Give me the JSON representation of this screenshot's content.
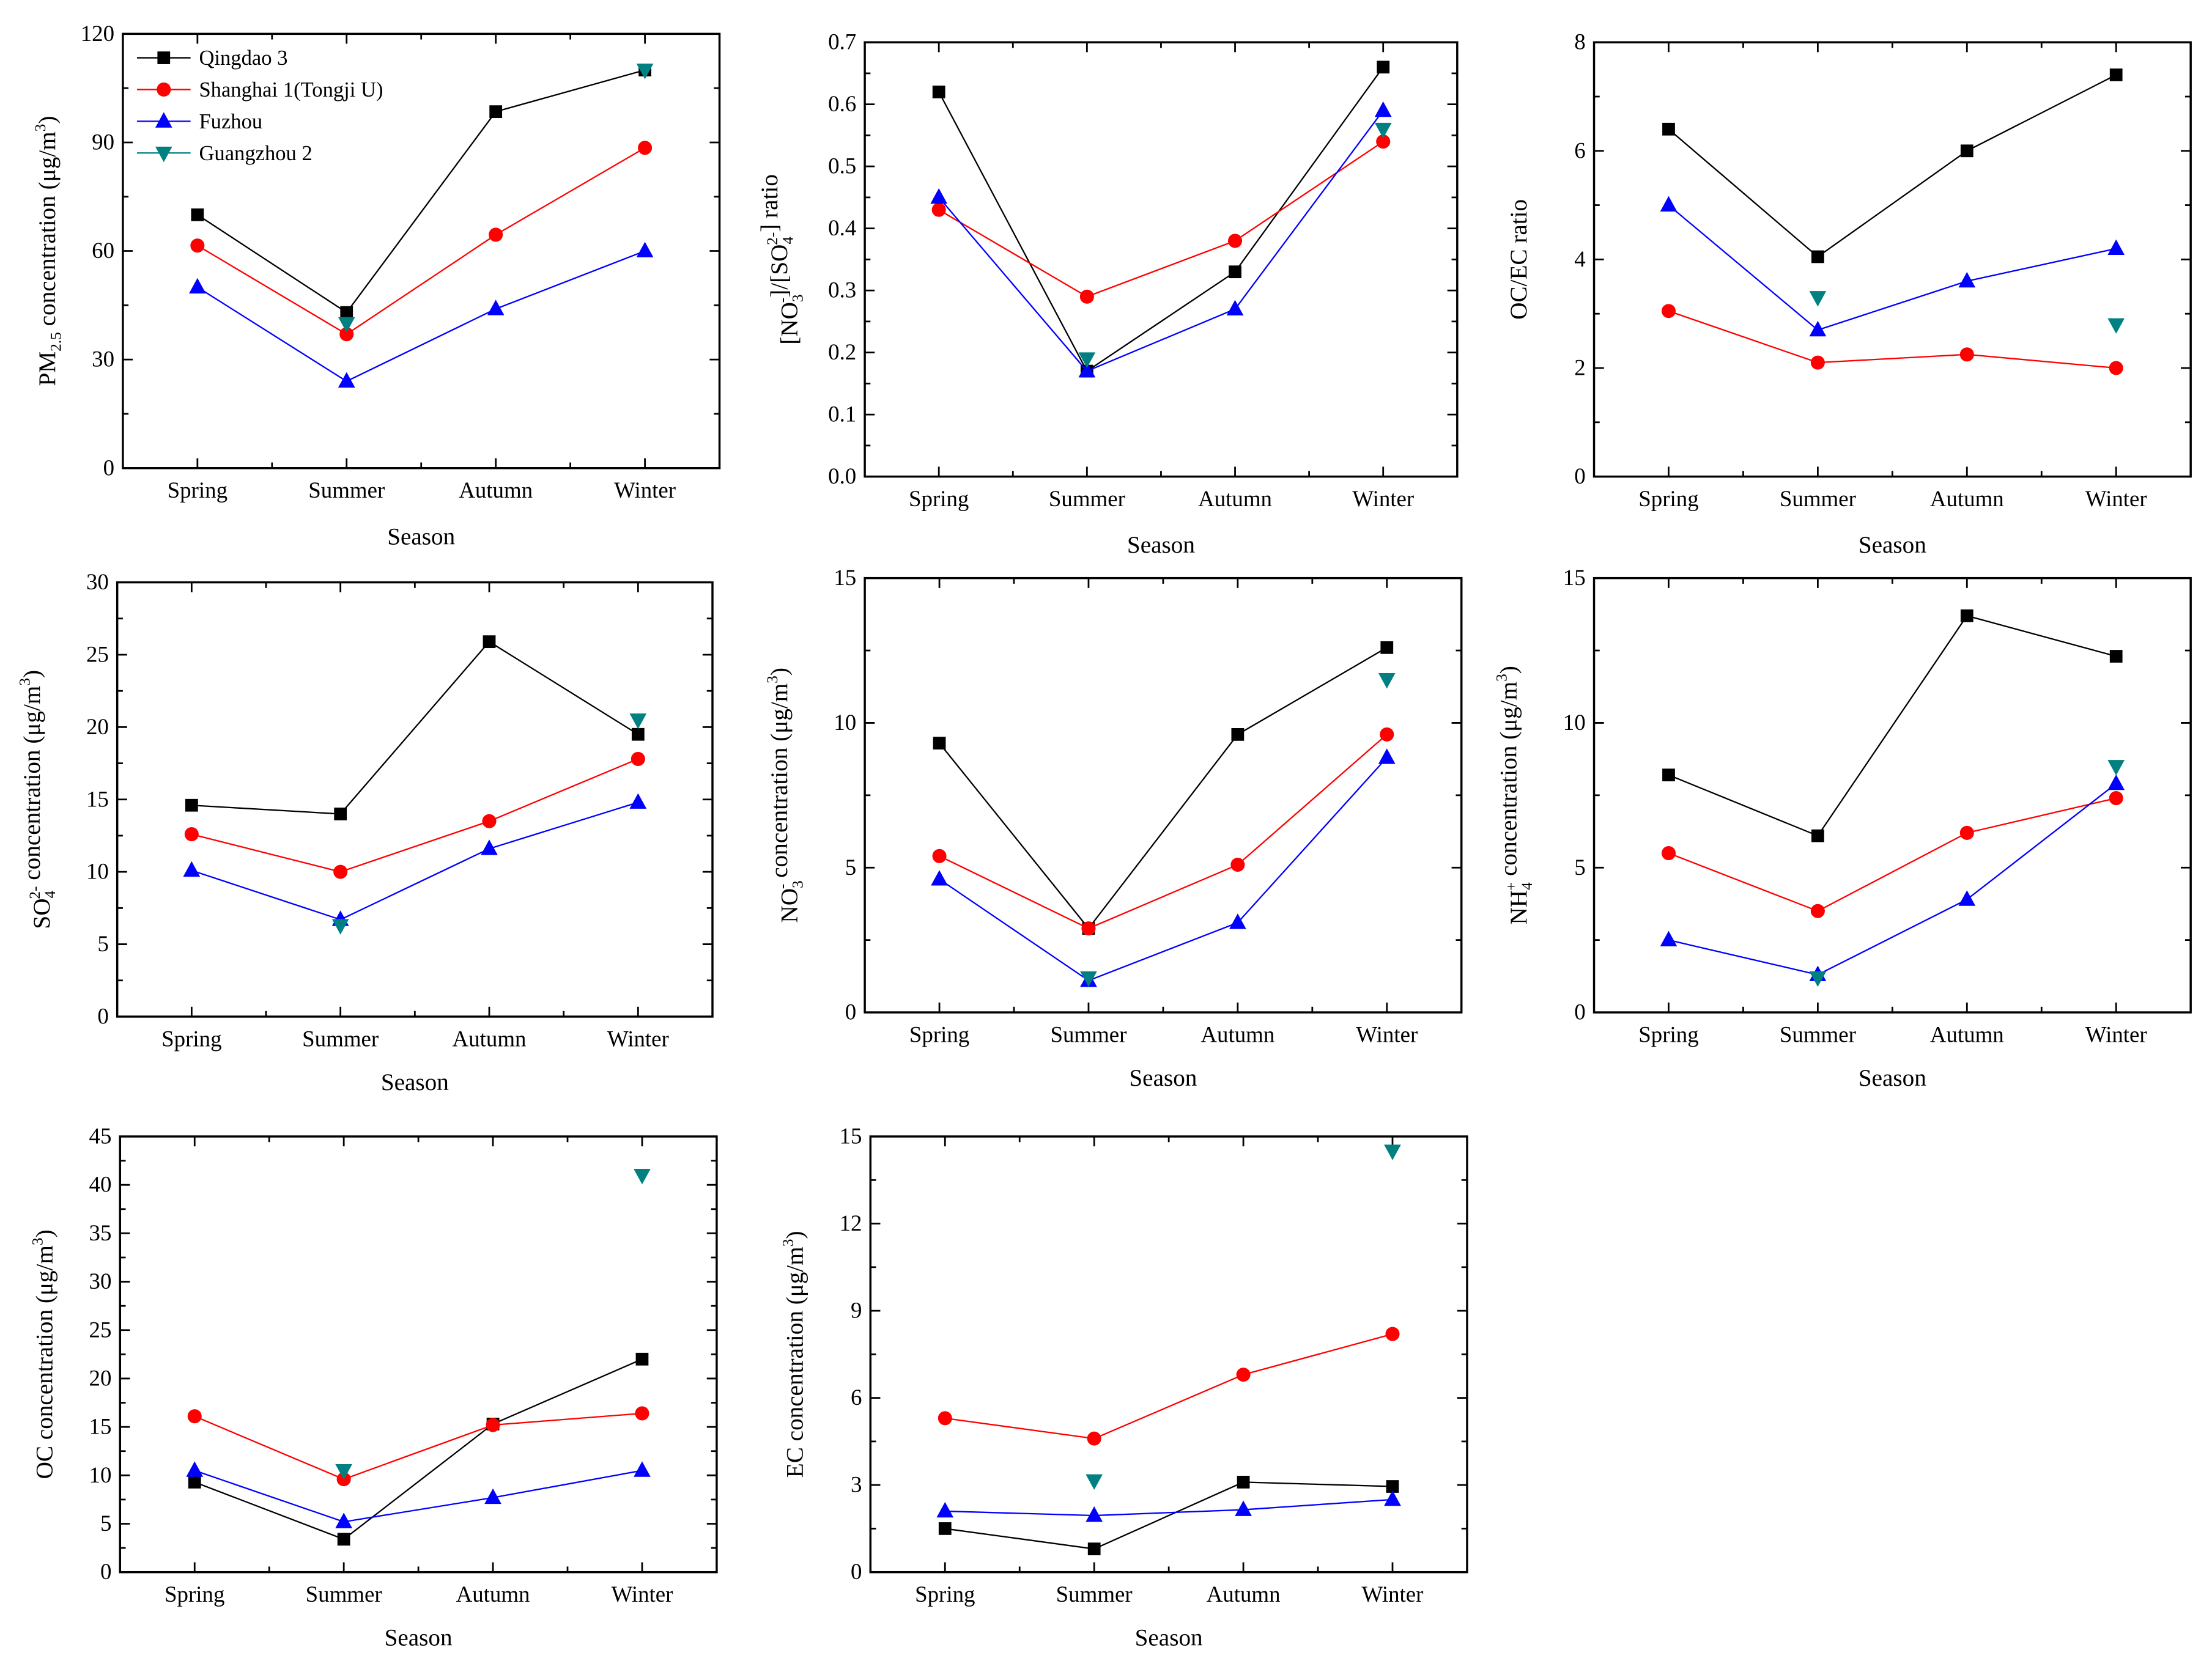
{
  "series_styles": [
    {
      "name": "Qingdao 3",
      "color": "#000000",
      "marker": "square",
      "line": true
    },
    {
      "name": "Shanghai 1(Tongji U)",
      "color": "#ff0000",
      "marker": "circle",
      "line": true
    },
    {
      "name": "Fuzhou",
      "color": "#0000ff",
      "marker": "triangle-up",
      "line": true
    },
    {
      "name": "Guangzhou 2",
      "color": "#008080",
      "marker": "triangle-down",
      "line": false
    }
  ],
  "chart_data": [
    {
      "type": "line",
      "title": "",
      "xlabel": "Season",
      "legend": "top-left",
      "ylabel": [
        {
          "text": "PM"
        },
        {
          "text": "2.5",
          "sub": true
        },
        {
          "text": " concentration (μg/m"
        },
        {
          "text": "3",
          "sup": true
        },
        {
          "text": ")"
        }
      ],
      "categories": [
        "Spring",
        "Summer",
        "Autumn",
        "Winter"
      ],
      "ylim": [
        0,
        120
      ],
      "yticks": [
        "0",
        "30",
        "60",
        "90",
        "120"
      ],
      "yminor": 15,
      "series": [
        {
          "name": "Qingdao 3",
          "values": [
            70,
            43,
            98.5,
            110
          ]
        },
        {
          "name": "Shanghai 1(Tongji U)",
          "values": [
            61.5,
            37,
            64.5,
            88.5
          ]
        },
        {
          "name": "Fuzhou",
          "values": [
            50,
            24,
            44,
            60
          ]
        },
        {
          "name": "Guangzhou 2",
          "values": [
            null,
            40,
            null,
            110
          ]
        }
      ]
    },
    {
      "type": "line",
      "title": "",
      "xlabel": "Season",
      "ylabel": [
        {
          "text": "[NO"
        },
        {
          "text": "3",
          "sub": true
        },
        {
          "text": "-",
          "sup": true
        },
        {
          "text": "]/[SO"
        },
        {
          "text": "4",
          "sub": true
        },
        {
          "text": "2-",
          "sup": true
        },
        {
          "text": "] ratio"
        }
      ],
      "categories": [
        "Spring",
        "Summer",
        "Autumn",
        "Winter"
      ],
      "ylim": [
        0,
        0.7
      ],
      "yticks": [
        "0.0",
        "0.1",
        "0.2",
        "0.3",
        "0.4",
        "0.5",
        "0.6",
        "0.7"
      ],
      "yminor": 0.05,
      "series": [
        {
          "name": "Qingdao 3",
          "values": [
            0.62,
            0.17,
            0.33,
            0.66
          ]
        },
        {
          "name": "Shanghai 1(Tongji U)",
          "values": [
            0.43,
            0.29,
            0.38,
            0.54
          ]
        },
        {
          "name": "Fuzhou",
          "values": [
            0.45,
            0.17,
            0.27,
            0.59
          ]
        },
        {
          "name": "Guangzhou 2",
          "values": [
            null,
            0.19,
            null,
            0.56
          ]
        }
      ]
    },
    {
      "type": "line",
      "title": "",
      "xlabel": "Season",
      "ylabel": [
        {
          "text": "OC/EC ratio"
        }
      ],
      "categories": [
        "Spring",
        "Summer",
        "Autumn",
        "Winter"
      ],
      "ylim": [
        0,
        8
      ],
      "yticks": [
        "0",
        "2",
        "4",
        "6",
        "8"
      ],
      "yminor": 1,
      "series": [
        {
          "name": "Qingdao 3",
          "values": [
            6.4,
            4.05,
            6.0,
            7.4
          ]
        },
        {
          "name": "Shanghai 1(Tongji U)",
          "values": [
            3.05,
            2.1,
            2.25,
            2.0
          ]
        },
        {
          "name": "Fuzhou",
          "values": [
            5.0,
            2.7,
            3.6,
            4.2
          ]
        },
        {
          "name": "Guangzhou 2",
          "values": [
            null,
            3.3,
            null,
            2.8
          ]
        }
      ]
    },
    {
      "type": "line",
      "title": "",
      "xlabel": "Season",
      "ylabel": [
        {
          "text": "SO"
        },
        {
          "text": "4",
          "sub": true
        },
        {
          "text": "2-",
          "sup": true
        },
        {
          "text": " concentration (μg/m"
        },
        {
          "text": "3",
          "sup": true
        },
        {
          "text": ")"
        }
      ],
      "categories": [
        "Spring",
        "Summer",
        "Autumn",
        "Winter"
      ],
      "ylim": [
        0,
        30
      ],
      "yticks": [
        "0",
        "5",
        "10",
        "15",
        "20",
        "25",
        "30"
      ],
      "yminor": 2.5,
      "series": [
        {
          "name": "Qingdao 3",
          "values": [
            14.6,
            14.0,
            25.9,
            19.5
          ]
        },
        {
          "name": "Shanghai 1(Tongji U)",
          "values": [
            12.6,
            10.0,
            13.5,
            17.8
          ]
        },
        {
          "name": "Fuzhou",
          "values": [
            10.1,
            6.7,
            11.6,
            14.8
          ]
        },
        {
          "name": "Guangzhou 2",
          "values": [
            null,
            6.3,
            null,
            20.5
          ]
        }
      ]
    },
    {
      "type": "line",
      "title": "",
      "xlabel": "Season",
      "ylabel": [
        {
          "text": "NO"
        },
        {
          "text": "3",
          "sub": true
        },
        {
          "text": "-",
          "sup": true
        },
        {
          "text": " concentration (μg/m"
        },
        {
          "text": "3",
          "sup": true
        },
        {
          "text": ")"
        }
      ],
      "categories": [
        "Spring",
        "Summer",
        "Autumn",
        "Winter"
      ],
      "ylim": [
        0,
        15
      ],
      "yticks": [
        "0",
        "5",
        "10",
        "15"
      ],
      "yminor": 2.5,
      "series": [
        {
          "name": "Qingdao 3",
          "values": [
            9.3,
            2.9,
            9.6,
            12.6
          ]
        },
        {
          "name": "Shanghai 1(Tongji U)",
          "values": [
            5.4,
            2.9,
            5.1,
            9.6
          ]
        },
        {
          "name": "Fuzhou",
          "values": [
            4.6,
            1.1,
            3.1,
            8.8
          ]
        },
        {
          "name": "Guangzhou 2",
          "values": [
            null,
            1.2,
            null,
            11.5
          ]
        }
      ]
    },
    {
      "type": "line",
      "title": "",
      "xlabel": "Season",
      "ylabel": [
        {
          "text": "NH"
        },
        {
          "text": "4",
          "sub": true
        },
        {
          "text": "+",
          "sup": true
        },
        {
          "text": " concentration (μg/m"
        },
        {
          "text": "3",
          "sup": true
        },
        {
          "text": ")"
        }
      ],
      "categories": [
        "Spring",
        "Summer",
        "Autumn",
        "Winter"
      ],
      "ylim": [
        0,
        15
      ],
      "yticks": [
        "0",
        "5",
        "10",
        "15"
      ],
      "yminor": 2.5,
      "series": [
        {
          "name": "Qingdao 3",
          "values": [
            8.2,
            6.1,
            13.7,
            12.3
          ]
        },
        {
          "name": "Shanghai 1(Tongji U)",
          "values": [
            5.5,
            3.5,
            6.2,
            7.4
          ]
        },
        {
          "name": "Fuzhou",
          "values": [
            2.5,
            1.3,
            3.9,
            7.9
          ]
        },
        {
          "name": "Guangzhou 2",
          "values": [
            null,
            1.2,
            null,
            8.5
          ]
        }
      ]
    },
    {
      "type": "line",
      "title": "",
      "xlabel": "Season",
      "ylabel": [
        {
          "text": "OC concentration (μg/m"
        },
        {
          "text": "3",
          "sup": true
        },
        {
          "text": ")"
        }
      ],
      "categories": [
        "Spring",
        "Summer",
        "Autumn",
        "Winter"
      ],
      "ylim": [
        0,
        45
      ],
      "yticks": [
        "0",
        "5",
        "10",
        "15",
        "20",
        "25",
        "30",
        "35",
        "40",
        "45"
      ],
      "yminor": 2.5,
      "series": [
        {
          "name": "Qingdao 3",
          "values": [
            9.3,
            3.4,
            15.3,
            22.0
          ]
        },
        {
          "name": "Shanghai 1(Tongji U)",
          "values": [
            16.1,
            9.6,
            15.2,
            16.4
          ]
        },
        {
          "name": "Fuzhou",
          "values": [
            10.5,
            5.2,
            7.7,
            10.5
          ]
        },
        {
          "name": "Guangzhou 2",
          "values": [
            null,
            10.5,
            null,
            41.0
          ]
        }
      ]
    },
    {
      "type": "line",
      "title": "",
      "xlabel": "Season",
      "ylabel": [
        {
          "text": "EC concentration (μg/m"
        },
        {
          "text": "3",
          "sup": true
        },
        {
          "text": ")"
        }
      ],
      "categories": [
        "Spring",
        "Summer",
        "Autumn",
        "Winter"
      ],
      "ylim": [
        0,
        15
      ],
      "yticks": [
        "0",
        "3",
        "6",
        "9",
        "12",
        "15"
      ],
      "yminor": 1.5,
      "series": [
        {
          "name": "Qingdao 3",
          "values": [
            1.5,
            0.8,
            3.1,
            2.95
          ]
        },
        {
          "name": "Shanghai 1(Tongji U)",
          "values": [
            5.3,
            4.6,
            6.8,
            8.2
          ]
        },
        {
          "name": "Fuzhou",
          "values": [
            2.1,
            1.95,
            2.15,
            2.5
          ]
        },
        {
          "name": "Guangzhou 2",
          "values": [
            null,
            3.15,
            null,
            14.5
          ]
        }
      ]
    }
  ]
}
